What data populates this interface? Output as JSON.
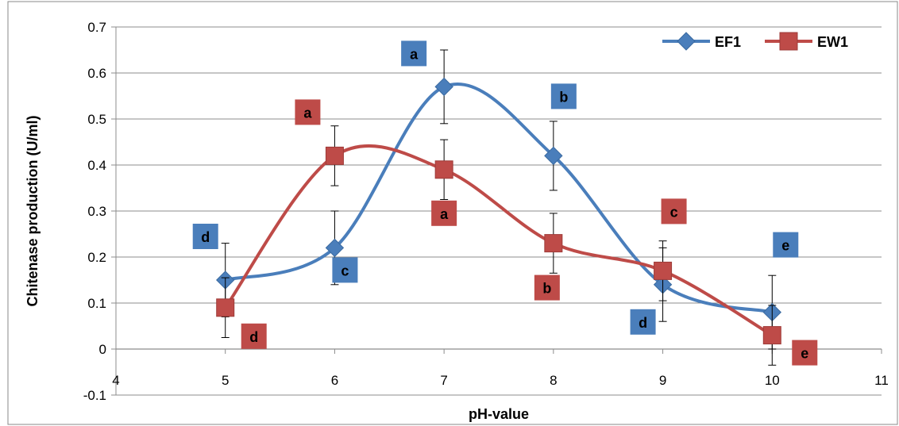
{
  "chart_data": {
    "type": "line",
    "title": "",
    "xlabel": "pH-value",
    "ylabel": "Chitenase production (U/ml)",
    "xlim": [
      4,
      11
    ],
    "ylim": [
      -0.1,
      0.7
    ],
    "xticks": [
      4,
      5,
      6,
      7,
      8,
      9,
      10,
      11
    ],
    "yticks": [
      -0.1,
      0,
      0.1,
      0.2,
      0.3,
      0.4,
      0.5,
      0.6,
      0.7
    ],
    "ytick_labels": [
      "-0.1",
      "0",
      "0.1",
      "0.2",
      "0.3",
      "0.4",
      "0.5",
      "0.6",
      "0.7"
    ],
    "grid": true,
    "smooth": true,
    "legend_position": "top-right",
    "series": [
      {
        "name": "EF1",
        "color": "#4a7ebb",
        "marker": "diamond",
        "x": [
          5,
          6,
          7,
          8,
          9,
          10
        ],
        "y": [
          0.15,
          0.22,
          0.57,
          0.42,
          0.14,
          0.08
        ],
        "error": [
          0.08,
          0.08,
          0.08,
          0.075,
          0.08,
          0.08
        ],
        "letters": [
          "d",
          "c",
          "a",
          "b",
          "d",
          "e"
        ]
      },
      {
        "name": "EW1",
        "color": "#be4b48",
        "marker": "square",
        "x": [
          5,
          6,
          7,
          8,
          9,
          10
        ],
        "y": [
          0.09,
          0.42,
          0.39,
          0.23,
          0.17,
          0.03
        ],
        "error": [
          0.065,
          0.065,
          0.065,
          0.065,
          0.065,
          0.065
        ],
        "letters": [
          "d",
          "a",
          "a",
          "b",
          "c",
          "e"
        ]
      }
    ]
  }
}
